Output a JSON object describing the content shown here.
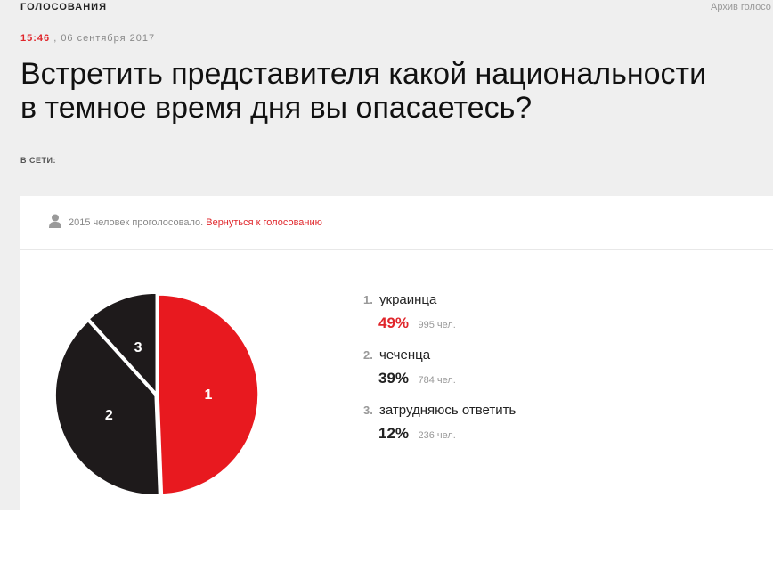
{
  "header": {
    "section": "ГОЛОСОВАНИЯ",
    "archive_link": "Архив голосо"
  },
  "article": {
    "time": "15:46",
    "date_sep": " , ",
    "date": "06 сентября 2017",
    "title_line1": "Встретить представителя какой национальности",
    "title_line2": "в темное время дня вы опасаетесь?",
    "online_label": "В СЕТИ:"
  },
  "poll": {
    "votes_text": "2015 человек проголосовало.",
    "back_link": "Вернуться к голосованию",
    "options": [
      {
        "num": "1.",
        "label": "украинца",
        "percent": "49%",
        "count": "995 чел."
      },
      {
        "num": "2.",
        "label": "чеченца",
        "percent": "39%",
        "count": "784 чел."
      },
      {
        "num": "3.",
        "label": "затрудняюсь ответить",
        "percent": "12%",
        "count": "236 чел."
      }
    ]
  },
  "chart_data": {
    "type": "pie",
    "categories": [
      "1",
      "2",
      "3"
    ],
    "values": [
      995,
      784,
      236
    ],
    "percentages": [
      49,
      39,
      12
    ],
    "colors": [
      "#e8191f",
      "#1e1a1b",
      "#1e1a1b"
    ]
  },
  "icons": {
    "user": "user-icon"
  }
}
